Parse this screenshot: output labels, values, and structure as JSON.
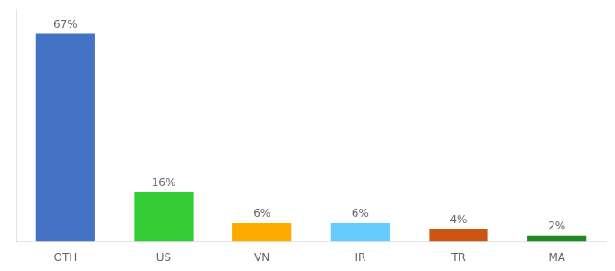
{
  "chart_data": {
    "type": "bar",
    "categories": [
      "OTH",
      "US",
      "VN",
      "IR",
      "TR",
      "MA"
    ],
    "values": [
      67,
      16,
      6,
      6,
      4,
      2
    ],
    "value_labels": [
      "67%",
      "16%",
      "6%",
      "6%",
      "4%",
      "2%"
    ],
    "colors": [
      "#4472c4",
      "#33cc33",
      "#ffaa00",
      "#66ccff",
      "#cc5511",
      "#228822"
    ],
    "data_labels": true,
    "ylim": [
      0,
      75
    ],
    "grid": false,
    "tick_labels": "x"
  }
}
